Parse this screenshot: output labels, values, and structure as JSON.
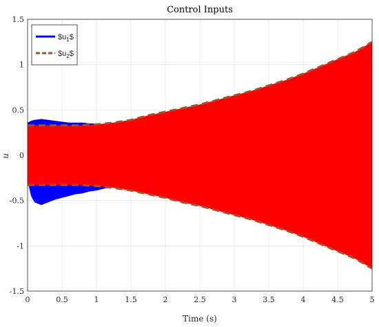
{
  "chart_data": {
    "type": "area",
    "title": "Control Inputs",
    "xlabel": "Time (s)",
    "ylabel": "u",
    "xlim": [
      0,
      5
    ],
    "ylim": [
      -1.5,
      1.5
    ],
    "x_ticks": [
      0,
      0.5,
      1,
      1.5,
      2,
      2.5,
      3,
      3.5,
      4,
      4.5,
      5
    ],
    "y_ticks": [
      -1.5,
      -1,
      -0.5,
      0,
      0.5,
      1,
      1.5
    ],
    "x_tick_labels": [
      "0",
      "0.5",
      "1",
      "1.5",
      "2",
      "2.5",
      "3",
      "3.5",
      "4",
      "4.5",
      "5"
    ],
    "y_tick_labels": [
      "-1.5",
      "-1",
      "-0.5",
      "0",
      "0.5",
      "1",
      "1.5"
    ],
    "grid": true,
    "legend_position": "top-left",
    "series": [
      {
        "name": "$u_1$",
        "legend_label": "$u",
        "legend_sub": "1",
        "legend_suffix": "$",
        "color": "#0000ff",
        "line_style": "solid",
        "x": [
          0,
          0.05,
          0.1,
          0.2,
          0.3,
          0.4,
          0.5,
          0.6,
          0.7,
          0.8,
          0.9,
          1.0,
          1.1,
          1.2
        ],
        "upper": [
          0.36,
          0.38,
          0.39,
          0.4,
          0.39,
          0.38,
          0.37,
          0.36,
          0.36,
          0.36,
          0.35,
          0.35,
          0.34,
          0.34
        ],
        "lower": [
          -0.28,
          -0.45,
          -0.52,
          -0.55,
          -0.52,
          -0.49,
          -0.47,
          -0.45,
          -0.43,
          -0.42,
          -0.4,
          -0.39,
          -0.37,
          -0.36
        ]
      },
      {
        "name": "$u_2$",
        "legend_label": "$u",
        "legend_sub": "2",
        "legend_suffix": "$",
        "color": "#ff0000",
        "edge_color": "#a0522d",
        "line_style": "dashed",
        "x": [
          0,
          0.25,
          0.5,
          0.75,
          1.0,
          1.25,
          1.5,
          1.75,
          2.0,
          2.25,
          2.5,
          2.75,
          3.0,
          3.25,
          3.5,
          3.75,
          4.0,
          4.25,
          4.5,
          4.75,
          5.0
        ],
        "upper": [
          0.33,
          0.33,
          0.33,
          0.33,
          0.34,
          0.36,
          0.39,
          0.44,
          0.48,
          0.52,
          0.56,
          0.61,
          0.66,
          0.71,
          0.77,
          0.83,
          0.9,
          0.98,
          1.06,
          1.14,
          1.25
        ],
        "lower": [
          -0.33,
          -0.33,
          -0.33,
          -0.33,
          -0.34,
          -0.36,
          -0.39,
          -0.43,
          -0.47,
          -0.52,
          -0.56,
          -0.61,
          -0.66,
          -0.71,
          -0.77,
          -0.83,
          -0.9,
          -0.98,
          -1.06,
          -1.14,
          -1.25
        ]
      }
    ]
  }
}
